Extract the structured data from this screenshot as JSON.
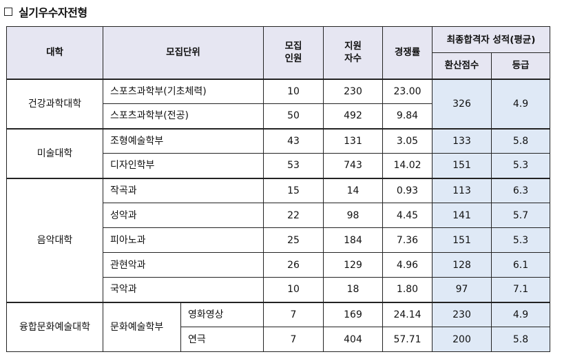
{
  "title": "실기우수자전형",
  "header": {
    "college": "대학",
    "unit": "모집단위",
    "quota": "모집\n인원",
    "applicants": "지원\n자수",
    "ratio": "경쟁률",
    "result_group": "최종합격자 성적(평균)",
    "converted": "환산점수",
    "grade": "등급"
  },
  "groups": [
    {
      "college": "건강과학대학",
      "rows": [
        {
          "unit": "스포츠과학부(기초체력)",
          "quota": "10",
          "applicants": "230",
          "ratio": "23.00"
        },
        {
          "unit": "스포츠과학부(전공)",
          "quota": "50",
          "applicants": "492",
          "ratio": "9.84"
        }
      ],
      "merged_score": {
        "converted": "326",
        "grade": "4.9"
      }
    },
    {
      "college": "미술대학",
      "rows": [
        {
          "unit": "조형예술학부",
          "quota": "43",
          "applicants": "131",
          "ratio": "3.05",
          "converted": "133",
          "grade": "5.8"
        },
        {
          "unit": "디자인학부",
          "quota": "53",
          "applicants": "743",
          "ratio": "14.02",
          "converted": "151",
          "grade": "5.3"
        }
      ]
    },
    {
      "college": "음악대학",
      "rows": [
        {
          "unit": "작곡과",
          "quota": "15",
          "applicants": "14",
          "ratio": "0.93",
          "converted": "113",
          "grade": "6.3"
        },
        {
          "unit": "성악과",
          "quota": "22",
          "applicants": "98",
          "ratio": "4.45",
          "converted": "141",
          "grade": "5.7"
        },
        {
          "unit": "피아노과",
          "quota": "25",
          "applicants": "184",
          "ratio": "7.36",
          "converted": "151",
          "grade": "5.3"
        },
        {
          "unit": "관현악과",
          "quota": "26",
          "applicants": "129",
          "ratio": "4.96",
          "converted": "128",
          "grade": "6.1"
        },
        {
          "unit": "국악과",
          "quota": "10",
          "applicants": "18",
          "ratio": "1.80",
          "converted": "97",
          "grade": "7.1"
        }
      ]
    },
    {
      "college": "융합문화예술대학",
      "unit": "문화예술학부",
      "rows": [
        {
          "major": "영화영상",
          "quota": "7",
          "applicants": "169",
          "ratio": "24.14",
          "converted": "230",
          "grade": "4.9"
        },
        {
          "major": "연극",
          "quota": "7",
          "applicants": "404",
          "ratio": "57.71",
          "converted": "200",
          "grade": "5.8"
        }
      ]
    }
  ]
}
